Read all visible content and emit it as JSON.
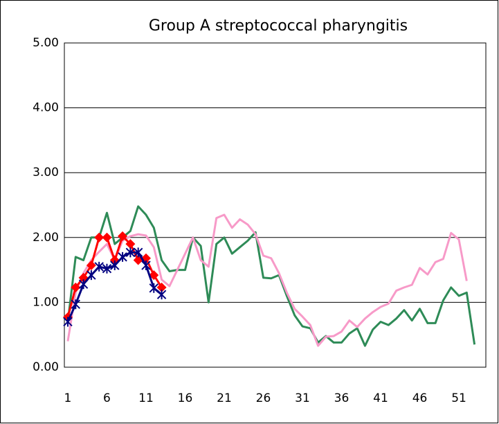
{
  "chart_data": {
    "type": "line",
    "title": "Group A streptococcal pharyngitis",
    "x": [
      1,
      2,
      3,
      4,
      5,
      6,
      7,
      8,
      9,
      10,
      11,
      12,
      13,
      14,
      15,
      16,
      17,
      18,
      19,
      20,
      21,
      22,
      23,
      24,
      25,
      26,
      27,
      28,
      29,
      30,
      31,
      32,
      33,
      34,
      35,
      36,
      37,
      38,
      39,
      40,
      41,
      42,
      43,
      44,
      45,
      46,
      47,
      48,
      49,
      50,
      51,
      52,
      53
    ],
    "xlim": [
      0.56,
      54.45
    ],
    "xticks": [
      1,
      6,
      11,
      16,
      21,
      26,
      31,
      36,
      41,
      46,
      51
    ],
    "ylim": [
      0,
      5
    ],
    "yticks": [
      {
        "value": 0,
        "label": "0.00"
      },
      {
        "value": 1,
        "label": "1.00"
      },
      {
        "value": 2,
        "label": "2.00"
      },
      {
        "value": 3,
        "label": "3.00"
      },
      {
        "value": 4,
        "label": "4.00"
      },
      {
        "value": 5,
        "label": "5.00"
      }
    ],
    "grid": true,
    "series": [
      {
        "color": "#2e8b57",
        "marker": "none",
        "values": [
          0.7,
          1.7,
          1.65,
          2.0,
          2.0,
          2.38,
          1.9,
          2.0,
          2.1,
          2.48,
          2.35,
          2.15,
          1.65,
          1.48,
          1.5,
          1.5,
          2.0,
          1.87,
          1.0,
          1.9,
          2.0,
          1.75,
          1.85,
          1.95,
          2.08,
          1.38,
          1.37,
          1.42,
          1.1,
          0.8,
          0.63,
          0.6,
          0.38,
          0.48,
          0.38,
          0.38,
          0.52,
          0.6,
          0.33,
          0.58,
          0.7,
          0.65,
          0.75,
          0.88,
          0.72,
          0.9,
          0.68,
          0.68,
          1.03,
          1.23,
          1.1,
          1.15,
          0.35
        ]
      },
      {
        "color": "#f79ac8",
        "marker": "none",
        "values": [
          0.4,
          1.15,
          1.45,
          1.65,
          1.78,
          1.9,
          1.65,
          1.95,
          2.02,
          2.05,
          2.03,
          1.85,
          1.35,
          1.25,
          1.5,
          1.75,
          2.0,
          1.65,
          1.55,
          2.3,
          2.35,
          2.15,
          2.28,
          2.2,
          2.05,
          1.72,
          1.68,
          1.45,
          1.15,
          0.9,
          0.78,
          0.65,
          0.33,
          0.47,
          0.48,
          0.55,
          0.72,
          0.62,
          0.75,
          0.85,
          0.93,
          0.98,
          1.18,
          1.23,
          1.27,
          1.53,
          1.43,
          1.62,
          1.67,
          2.07,
          1.97,
          1.33,
          null
        ]
      },
      {
        "color": "#ff0000",
        "marker": "diamond",
        "values": [
          0.77,
          1.23,
          1.38,
          1.57,
          2.0,
          2.0,
          1.65,
          2.02,
          1.9,
          1.65,
          1.68,
          1.42,
          1.23,
          null,
          null,
          null,
          null,
          null,
          null,
          null,
          null,
          null,
          null,
          null,
          null,
          null,
          null,
          null,
          null,
          null,
          null,
          null,
          null,
          null,
          null,
          null,
          null,
          null,
          null,
          null,
          null,
          null,
          null,
          null,
          null,
          null,
          null,
          null,
          null,
          null,
          null,
          null,
          null
        ]
      },
      {
        "color": "#000080",
        "marker": "asterisk",
        "values": [
          0.7,
          0.97,
          1.28,
          1.42,
          1.55,
          1.52,
          1.57,
          1.7,
          1.77,
          1.77,
          1.57,
          1.22,
          1.12,
          null,
          null,
          null,
          null,
          null,
          null,
          null,
          null,
          null,
          null,
          null,
          null,
          null,
          null,
          null,
          null,
          null,
          null,
          null,
          null,
          null,
          null,
          null,
          null,
          null,
          null,
          null,
          null,
          null,
          null,
          null,
          null,
          null,
          null,
          null,
          null,
          null,
          null,
          null,
          null
        ]
      }
    ]
  }
}
